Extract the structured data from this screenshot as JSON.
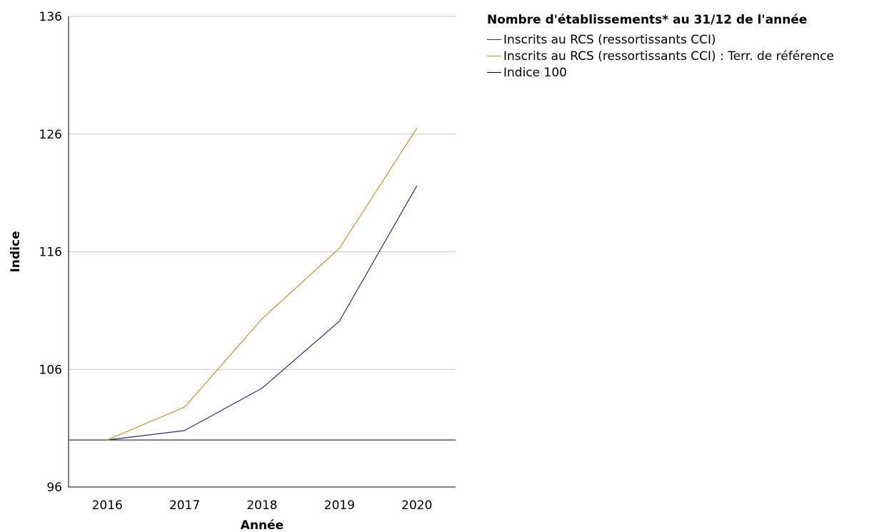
{
  "chart_data": {
    "type": "line",
    "ylabel": "Indice",
    "xlabel": "Année",
    "categories": [
      "2016",
      "2017",
      "2018",
      "2019",
      "2020"
    ],
    "ylim": [
      96,
      136
    ],
    "yticks": [
      96,
      106,
      116,
      126,
      136
    ],
    "grid": true,
    "legend": {
      "title": "Nombre d'établissements* au 31/12 de l'année",
      "placement": "right"
    },
    "series": [
      {
        "name": "Inscrits au RCS (ressortissants CCI)",
        "color": "#2e2a85",
        "values": [
          100,
          100.8,
          104.4,
          110.1,
          121.6
        ]
      },
      {
        "name": "Inscrits au RCS (ressortissants CCI) : Terr. de référence",
        "color": "#c8902a",
        "values": [
          100,
          102.8,
          110.3,
          116.3,
          126.5
        ]
      },
      {
        "name": "Indice 100",
        "color": "#000000",
        "values": [
          100,
          100,
          100,
          100,
          100
        ],
        "reference": true
      }
    ]
  }
}
